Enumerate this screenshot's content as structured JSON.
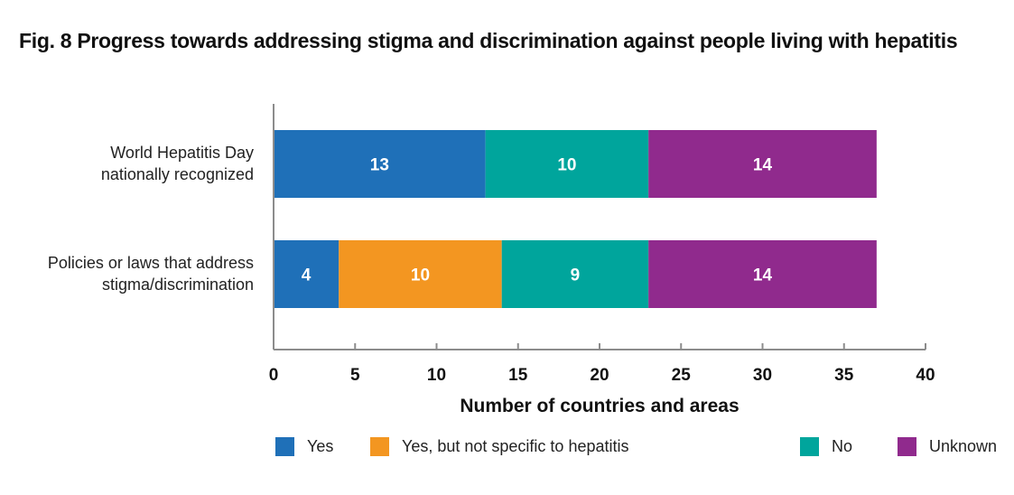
{
  "chart_data": {
    "type": "bar",
    "orientation": "horizontal",
    "stacked": true,
    "title": "Fig. 8 Progress towards addressing stigma and discrimination against people living with hepatitis",
    "xlabel": "Number of countries and areas",
    "ylabel": "",
    "xlim": [
      0,
      40
    ],
    "xticks": [
      0,
      5,
      10,
      15,
      20,
      25,
      30,
      35,
      40
    ],
    "grid": false,
    "legend_position": "bottom",
    "categories": [
      "World Hepatitis Day nationally recognized",
      "Policies or laws that address stigma/discrimination"
    ],
    "category_lines": [
      [
        "World Hepatitis Day",
        "nationally recognized"
      ],
      [
        "Policies or laws that address",
        "stigma/discrimination"
      ]
    ],
    "series": [
      {
        "name": "Yes",
        "color": "#1f70b8",
        "values": [
          13,
          4
        ]
      },
      {
        "name": "Yes, but not specific to hepatitis",
        "color": "#f39621",
        "values": [
          0,
          10
        ]
      },
      {
        "name": "No",
        "color": "#00a59c",
        "values": [
          10,
          9
        ]
      },
      {
        "name": "Unknown",
        "color": "#902a8d",
        "values": [
          14,
          14
        ]
      }
    ]
  }
}
